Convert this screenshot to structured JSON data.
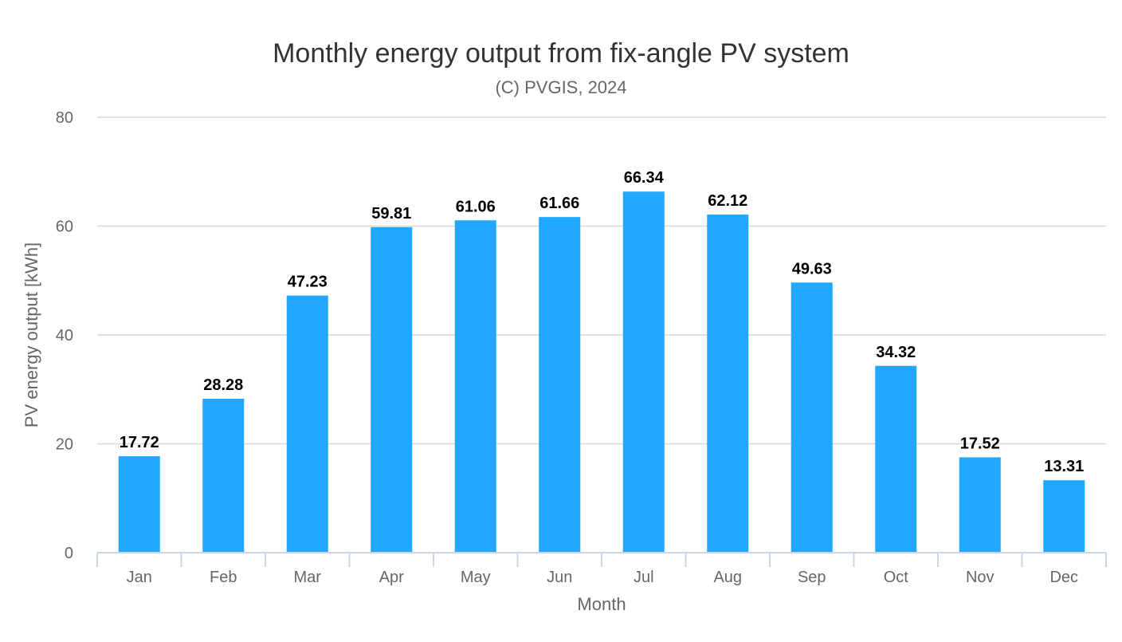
{
  "chart_data": {
    "type": "bar",
    "title": "Monthly energy output from fix-angle PV system",
    "subtitle": "(C) PVGIS, 2024",
    "xlabel": "Month",
    "ylabel": "PV energy output [kWh]",
    "categories": [
      "Jan",
      "Feb",
      "Mar",
      "Apr",
      "May",
      "Jun",
      "Jul",
      "Aug",
      "Sep",
      "Oct",
      "Nov",
      "Dec"
    ],
    "values": [
      17.72,
      28.28,
      47.23,
      59.81,
      61.06,
      61.66,
      66.34,
      62.12,
      49.63,
      34.32,
      17.52,
      13.31
    ],
    "data_labels": [
      "17.72",
      "28.28",
      "47.23",
      "59.81",
      "61.06",
      "61.66",
      "66.34",
      "62.12",
      "49.63",
      "34.32",
      "17.52",
      "13.31"
    ],
    "ylim": [
      0,
      80
    ],
    "yticks": [
      0,
      20,
      40,
      60,
      80
    ],
    "ytick_labels": [
      "0",
      "20",
      "40",
      "60",
      "80"
    ],
    "grid": true,
    "legend": "none",
    "colors": {
      "bar": "#21a7ff",
      "grid": "#d9d9d9",
      "axis": "#ccd6eb"
    }
  }
}
